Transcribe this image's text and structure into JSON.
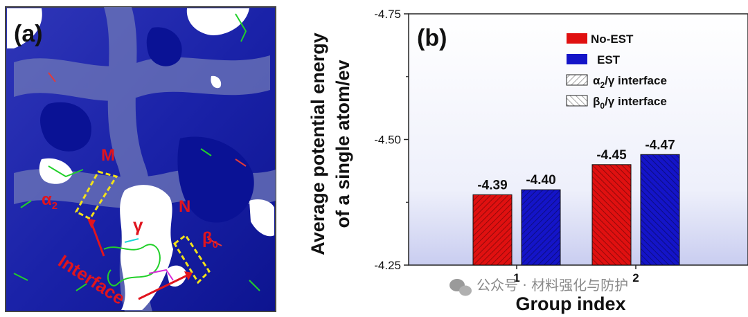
{
  "panel_a": {
    "tag": "(a)",
    "labels": {
      "m": "M",
      "n": "N",
      "gamma": "γ",
      "alpha2": "α",
      "alpha2_sub": "2",
      "beta0": "β",
      "beta0_sub": "0",
      "interface": "Interface"
    }
  },
  "chart_data": {
    "type": "bar",
    "tag": "(b)",
    "categories": [
      "1",
      "2"
    ],
    "series": [
      {
        "name": "No-EST",
        "values": [
          -4.39,
          -4.45
        ],
        "color": "#e01010"
      },
      {
        "name": "EST",
        "values": [
          -4.4,
          -4.47
        ],
        "color": "#1414c8"
      }
    ],
    "bar_labels": [
      [
        "-4.39",
        "-4.40"
      ],
      [
        "-4.45",
        "-4.47"
      ]
    ],
    "ylim": [
      -4.25,
      -4.75
    ],
    "y_inverted": true,
    "yticks": [
      "-4.25",
      "-4.50",
      "-4.75"
    ],
    "ytick_values": [
      -4.25,
      -4.5,
      -4.75
    ],
    "ylabel_line1": "Average potential energy",
    "ylabel_line2": "of a single atom/ev",
    "xlabel": "Group index",
    "legend_position": "top-right",
    "legend": {
      "no_est": "No-EST",
      "est": "EST",
      "a2": "α",
      "a2_sub": "2",
      "a2_suffix": "/γ interface",
      "b0": "β",
      "b0_sub": "0",
      "b0_suffix": "/γ interface"
    },
    "hatch_by_group": [
      "α2/γ interface",
      "β0/γ interface"
    ]
  },
  "watermark": "公众号 · 材料强化与防护"
}
